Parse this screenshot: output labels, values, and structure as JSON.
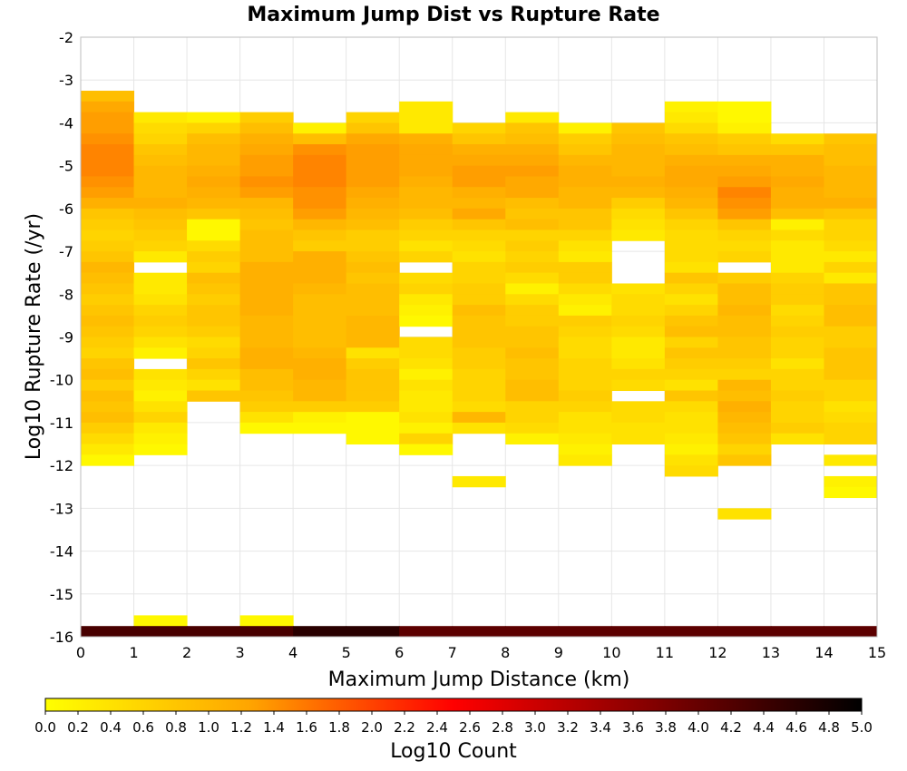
{
  "chart_data": {
    "type": "heatmap",
    "title": "Maximum Jump Dist vs Rupture Rate",
    "xlabel": "Maximum Jump Distance (km)",
    "ylabel": "Log10 Rupture Rate (/yr)",
    "xlim": [
      0,
      15
    ],
    "ylim": [
      -16,
      -2
    ],
    "x_bin_width": 1,
    "y_bin_height": 0.25,
    "grid": true,
    "x_ticks": [
      "0",
      "1",
      "2",
      "3",
      "4",
      "5",
      "6",
      "7",
      "8",
      "9",
      "10",
      "11",
      "12",
      "13",
      "14",
      "15"
    ],
    "y_ticks": [
      "-2",
      "-3",
      "-4",
      "-5",
      "-6",
      "-7",
      "-8",
      "-9",
      "-10",
      "-11",
      "-12",
      "-13",
      "-14",
      "-15",
      "-16"
    ],
    "colorbar": {
      "label": "Log10 Count",
      "range": [
        0,
        5
      ],
      "colors": [
        "#ffff00",
        "#ffa500",
        "#ff0000",
        "#800000",
        "#000000"
      ],
      "ticks": [
        "0.0",
        "0.2",
        "0.4",
        "0.6",
        "0.8",
        "1.0",
        "1.2",
        "1.4",
        "1.6",
        "1.8",
        "2.0",
        "2.2",
        "2.4",
        "2.6",
        "2.8",
        "3.0",
        "3.2",
        "3.4",
        "3.6",
        "3.8",
        "4.0",
        "4.2",
        "4.4",
        "4.6",
        "4.8",
        "5.0"
      ]
    },
    "columns": [
      {
        "x": 0,
        "y_top": -3.25,
        "values": [
          0.9,
          1.2,
          1.3,
          1.3,
          1.4,
          1.5,
          1.5,
          1.5,
          1.4,
          1.3,
          1.1,
          0.8,
          0.7,
          0.6,
          0.7,
          0.8,
          1.0,
          0.9,
          0.8,
          0.7,
          0.8,
          0.9,
          0.8,
          0.7,
          0.6,
          0.8,
          0.9,
          0.7,
          0.9,
          0.8,
          0.9,
          0.7,
          0.5,
          0.3,
          0.1
        ]
      },
      {
        "x": 1,
        "y_top": -3.75,
        "values": [
          0.3,
          0.5,
          0.6,
          0.8,
          0.9,
          1.0,
          1.0,
          1.0,
          1.1,
          0.9,
          0.8,
          0.7,
          0.6,
          0.3,
          null,
          0.3,
          0.3,
          0.4,
          0.6,
          0.7,
          0.6,
          0.4,
          0.2,
          null,
          0.4,
          0.3,
          0.2,
          0.4,
          0.6,
          0.3,
          0.2,
          0.1
        ]
      },
      {
        "x": 2,
        "y_top": -3.75,
        "values": [
          0.2,
          0.6,
          0.9,
          1.0,
          1.0,
          1.1,
          1.2,
          1.1,
          1.0,
          0.8,
          0.1,
          0.1,
          0.5,
          0.7,
          0.6,
          0.9,
          0.8,
          0.7,
          0.8,
          0.8,
          0.7,
          0.5,
          0.6,
          0.8,
          0.6,
          0.4,
          0.8
        ]
      },
      {
        "x": 3,
        "y_top": -3.75,
        "values": [
          0.7,
          0.9,
          1.1,
          1.2,
          1.3,
          1.3,
          1.4,
          1.3,
          1.0,
          0.9,
          0.8,
          0.9,
          0.9,
          0.9,
          1.1,
          1.1,
          1.1,
          1.1,
          1.1,
          1.0,
          1.0,
          1.0,
          1.1,
          1.1,
          0.9,
          0.9,
          0.8,
          0.7,
          0.4,
          0.1
        ]
      },
      {
        "x": 4,
        "y_top": -4.0,
        "values": [
          0.2,
          0.9,
          1.4,
          1.5,
          1.5,
          1.5,
          1.4,
          1.4,
          1.3,
          1.0,
          0.8,
          0.7,
          1.1,
          1.1,
          1.1,
          1.0,
          0.9,
          0.9,
          0.9,
          0.9,
          0.9,
          1.0,
          1.1,
          1.1,
          1.0,
          1.0,
          0.7,
          0.2,
          0.1
        ]
      },
      {
        "x": 5,
        "y_top": -3.75,
        "values": [
          0.6,
          0.8,
          1.2,
          1.3,
          1.3,
          1.3,
          1.3,
          1.2,
          1.1,
          1.0,
          0.9,
          0.7,
          0.7,
          0.8,
          0.9,
          0.8,
          0.9,
          0.9,
          0.9,
          1.0,
          1.0,
          1.0,
          0.4,
          0.7,
          0.8,
          0.8,
          0.8,
          0.7,
          0.1,
          0.1,
          0.1
        ]
      },
      {
        "x": 6,
        "y_top": -3.5,
        "values": [
          0.3,
          0.3,
          0.3,
          1.1,
          1.2,
          1.2,
          1.2,
          1.1,
          1.0,
          1.0,
          0.9,
          0.7,
          0.6,
          0.4,
          0.6,
          null,
          0.5,
          0.6,
          0.3,
          0.2,
          0.1,
          null,
          0.5,
          0.5,
          0.4,
          0.2,
          0.4,
          0.3,
          0.3,
          0.4,
          0.2,
          0.6,
          0.1
        ]
      },
      {
        "x": 7,
        "y_top": -4.0,
        "values": [
          0.6,
          0.8,
          1.1,
          1.2,
          1.3,
          1.3,
          1.1,
          1.0,
          1.2,
          0.8,
          0.6,
          0.5,
          0.4,
          0.6,
          0.6,
          0.7,
          0.7,
          0.9,
          0.8,
          0.8,
          0.8,
          0.7,
          0.7,
          0.6,
          0.6,
          0.6,
          0.5,
          1.0,
          0.4,
          null,
          null,
          null,
          null,
          0.3
        ]
      },
      {
        "x": 8,
        "y_top": -3.75,
        "values": [
          0.3,
          0.8,
          0.9,
          1.1,
          1.2,
          1.3,
          1.2,
          1.2,
          0.9,
          0.8,
          0.9,
          0.6,
          0.7,
          0.6,
          0.7,
          0.5,
          0.2,
          0.5,
          0.7,
          0.7,
          0.8,
          0.8,
          0.9,
          0.8,
          0.8,
          0.9,
          0.9,
          0.6,
          0.6,
          0.5,
          0.2
        ]
      },
      {
        "x": 9,
        "y_top": -4.0,
        "values": [
          0.2,
          0.7,
          0.8,
          1.0,
          1.1,
          1.1,
          1.0,
          1.0,
          0.8,
          0.8,
          0.6,
          0.4,
          0.3,
          0.7,
          0.7,
          0.5,
          0.3,
          0.2,
          0.7,
          0.6,
          0.5,
          0.5,
          0.6,
          0.6,
          0.6,
          0.7,
          0.6,
          0.4,
          0.4,
          0.3,
          0.2,
          0.3
        ]
      },
      {
        "x": 10,
        "y_top": -4.0,
        "values": [
          0.8,
          0.9,
          1.0,
          1.0,
          1.0,
          1.1,
          1.0,
          0.7,
          0.5,
          0.4,
          0.3,
          null,
          null,
          null,
          null,
          0.4,
          0.5,
          0.5,
          0.6,
          0.5,
          0.3,
          0.3,
          0.4,
          0.6,
          0.5,
          null,
          0.5,
          0.5,
          0.4,
          0.4
        ]
      },
      {
        "x": 11,
        "y_top": -3.5,
        "values": [
          0.2,
          0.3,
          0.5,
          0.8,
          0.9,
          1.1,
          1.2,
          1.2,
          1.1,
          1.0,
          0.8,
          0.6,
          0.5,
          0.5,
          0.5,
          0.4,
          0.8,
          0.6,
          0.4,
          0.6,
          0.8,
          0.9,
          0.6,
          0.8,
          0.7,
          0.6,
          0.4,
          0.8,
          0.5,
          0.4,
          0.4,
          0.3,
          0.2,
          0.4,
          0.5
        ]
      },
      {
        "x": 12,
        "y_top": -3.5,
        "values": [
          0.1,
          0.1,
          0.2,
          0.7,
          0.8,
          1.1,
          1.2,
          1.3,
          1.5,
          1.4,
          1.3,
          0.8,
          0.6,
          0.5,
          0.6,
          null,
          0.7,
          0.9,
          0.9,
          1.0,
          0.9,
          0.9,
          0.8,
          0.8,
          0.7,
          0.6,
          1.0,
          0.9,
          1.1,
          1.0,
          0.9,
          0.8,
          0.6,
          0.8,
          null,
          null,
          null,
          null,
          0.4
        ]
      },
      {
        "x": 13,
        "y_top": -4.25,
        "values": [
          0.5,
          0.8,
          1.1,
          1.1,
          1.2,
          1.1,
          1.1,
          0.9,
          0.2,
          0.5,
          0.3,
          0.3,
          0.3,
          0.6,
          0.7,
          0.7,
          0.5,
          0.6,
          0.7,
          0.6,
          0.6,
          0.4,
          0.6,
          0.6,
          0.7,
          0.6,
          0.6,
          0.7,
          0.4
        ]
      },
      {
        "x": 14,
        "y_top": -4.25,
        "values": [
          0.8,
          0.9,
          0.9,
          1.0,
          1.0,
          1.0,
          1.1,
          0.8,
          0.6,
          0.6,
          0.5,
          0.3,
          0.6,
          0.3,
          0.8,
          0.8,
          0.9,
          0.9,
          0.7,
          0.7,
          0.8,
          0.8,
          0.8,
          0.6,
          0.6,
          0.4,
          0.5,
          0.6,
          0.6,
          null,
          0.3,
          null,
          0.2,
          0.1
        ]
      }
    ],
    "extra_cells": [
      {
        "x": 1,
        "y": -15.75,
        "value": 0.1
      },
      {
        "x": 3,
        "y": -15.75,
        "value": 0.1
      }
    ],
    "bottom_row": {
      "y": -16.0,
      "values": [
        4.3,
        4.3,
        4.3,
        4.3,
        4.6,
        4.6,
        4.1,
        4.1,
        4.1,
        4.1,
        4.1,
        4.1,
        4.1,
        4.1,
        4.1
      ]
    }
  }
}
